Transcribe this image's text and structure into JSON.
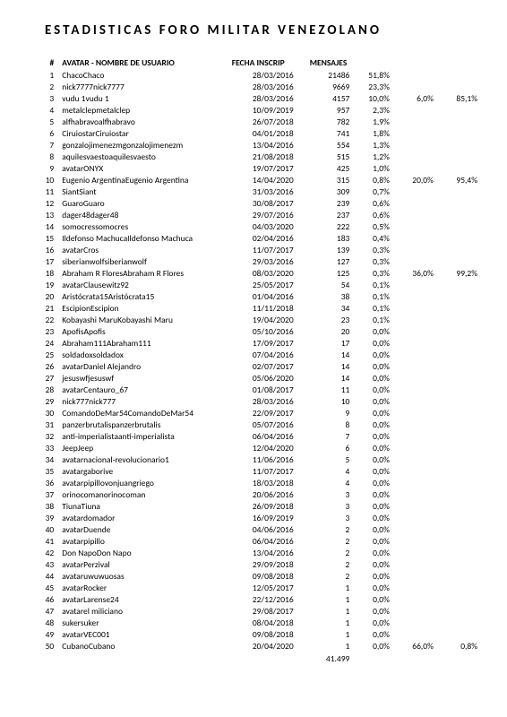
{
  "title": "ESTADISTICAS FORO MILITAR VENEZOLANO",
  "headers": {
    "num": "#",
    "name": "AVATAR - NOMBRE DE USUARIO",
    "date": "FECHA INSCRIP",
    "msgs": "MENSAJES"
  },
  "rows": [
    {
      "n": "1",
      "name": "ChacoChaco",
      "date": "28/03/2016",
      "msgs": "21486",
      "p1": "51,8%",
      "p2": "",
      "p3": ""
    },
    {
      "n": "2",
      "name": "nick7777nick7777",
      "date": "28/03/2016",
      "msgs": "9669",
      "p1": "23,3%",
      "p2": "",
      "p3": ""
    },
    {
      "n": "3",
      "name": "vudu 1vudu 1",
      "date": "28/03/2016",
      "msgs": "4157",
      "p1": "10,0%",
      "p2": "6,0%",
      "p3": "85,1%"
    },
    {
      "n": "4",
      "name": "metalclepmetalclep",
      "date": "10/09/2019",
      "msgs": "957",
      "p1": "2,3%",
      "p2": "",
      "p3": ""
    },
    {
      "n": "5",
      "name": "alfhabravoalfhabravo",
      "date": "26/07/2018",
      "msgs": "782",
      "p1": "1,9%",
      "p2": "",
      "p3": ""
    },
    {
      "n": "6",
      "name": "CiruiostarCiruiostar",
      "date": "04/01/2018",
      "msgs": "741",
      "p1": "1,8%",
      "p2": "",
      "p3": ""
    },
    {
      "n": "7",
      "name": "gonzalojimenezmgonzalojimenezm",
      "date": "13/04/2016",
      "msgs": "554",
      "p1": "1,3%",
      "p2": "",
      "p3": ""
    },
    {
      "n": "8",
      "name": "aquilesvaestoaquilesvaesto",
      "date": "21/08/2018",
      "msgs": "515",
      "p1": "1,2%",
      "p2": "",
      "p3": ""
    },
    {
      "n": "9",
      "name": "avatarONYX",
      "date": "19/07/2017",
      "msgs": "425",
      "p1": "1,0%",
      "p2": "",
      "p3": ""
    },
    {
      "n": "10",
      "name": "Eugenio ArgentinaEugenio Argentina",
      "date": "14/04/2020",
      "msgs": "315",
      "p1": "0,8%",
      "p2": "20,0%",
      "p3": "95,4%"
    },
    {
      "n": "11",
      "name": "SiantSiant",
      "date": "31/03/2016",
      "msgs": "309",
      "p1": "0,7%",
      "p2": "",
      "p3": ""
    },
    {
      "n": "12",
      "name": "GuaroGuaro",
      "date": "30/08/2017",
      "msgs": "239",
      "p1": "0,6%",
      "p2": "",
      "p3": ""
    },
    {
      "n": "13",
      "name": "dager48dager48",
      "date": "29/07/2016",
      "msgs": "237",
      "p1": "0,6%",
      "p2": "",
      "p3": ""
    },
    {
      "n": "14",
      "name": "somocressomocres",
      "date": "04/03/2020",
      "msgs": "222",
      "p1": "0,5%",
      "p2": "",
      "p3": ""
    },
    {
      "n": "15",
      "name": "Ildefonso MachucaIldefonso Machuca",
      "date": "02/04/2016",
      "msgs": "183",
      "p1": "0,4%",
      "p2": "",
      "p3": ""
    },
    {
      "n": "16",
      "name": "avatarCros",
      "date": "11/07/2017",
      "msgs": "139",
      "p1": "0,3%",
      "p2": "",
      "p3": ""
    },
    {
      "n": "17",
      "name": "siberianwolfsiberianwolf",
      "date": "29/03/2016",
      "msgs": "127",
      "p1": "0,3%",
      "p2": "",
      "p3": ""
    },
    {
      "n": "18",
      "name": "Abraham R FloresAbraham R Flores",
      "date": "08/03/2020",
      "msgs": "125",
      "p1": "0,3%",
      "p2": "36,0%",
      "p3": "99,2%"
    },
    {
      "n": "19",
      "name": "avatarClausewitz92",
      "date": "25/05/2017",
      "msgs": "54",
      "p1": "0,1%",
      "p2": "",
      "p3": ""
    },
    {
      "n": "20",
      "name": "Aristócrata15Aristócrata15",
      "date": "01/04/2016",
      "msgs": "38",
      "p1": "0,1%",
      "p2": "",
      "p3": ""
    },
    {
      "n": "21",
      "name": "EscipionEscipion",
      "date": "11/11/2018",
      "msgs": "34",
      "p1": "0,1%",
      "p2": "",
      "p3": ""
    },
    {
      "n": "22",
      "name": "Kobayashi MaruKobayashi Maru",
      "date": "19/04/2020",
      "msgs": "23",
      "p1": "0,1%",
      "p2": "",
      "p3": ""
    },
    {
      "n": "23",
      "name": "ApofisApofis",
      "date": "05/10/2016",
      "msgs": "20",
      "p1": "0,0%",
      "p2": "",
      "p3": ""
    },
    {
      "n": "24",
      "name": "Abraham111Abraham111",
      "date": "17/09/2017",
      "msgs": "17",
      "p1": "0,0%",
      "p2": "",
      "p3": ""
    },
    {
      "n": "25",
      "name": "soldadoxsoldadox",
      "date": "07/04/2016",
      "msgs": "14",
      "p1": "0,0%",
      "p2": "",
      "p3": ""
    },
    {
      "n": "26",
      "name": "avatarDaniel Alejandro",
      "date": "02/07/2017",
      "msgs": "14",
      "p1": "0,0%",
      "p2": "",
      "p3": ""
    },
    {
      "n": "27",
      "name": "jesuswfjesuswf",
      "date": "05/06/2020",
      "msgs": "14",
      "p1": "0,0%",
      "p2": "",
      "p3": ""
    },
    {
      "n": "28",
      "name": "avatarCentauro_67",
      "date": "01/08/2017",
      "msgs": "11",
      "p1": "0,0%",
      "p2": "",
      "p3": ""
    },
    {
      "n": "29",
      "name": "nick777nick777",
      "date": "28/03/2016",
      "msgs": "10",
      "p1": "0,0%",
      "p2": "",
      "p3": ""
    },
    {
      "n": "30",
      "name": "ComandoDeMar54ComandoDeMar54",
      "date": "22/09/2017",
      "msgs": "9",
      "p1": "0,0%",
      "p2": "",
      "p3": ""
    },
    {
      "n": "31",
      "name": "panzerbrutalispanzerbrutalis",
      "date": "05/07/2016",
      "msgs": "8",
      "p1": "0,0%",
      "p2": "",
      "p3": ""
    },
    {
      "n": "32",
      "name": "anti-imperialistaanti-imperialista",
      "date": "06/04/2016",
      "msgs": "7",
      "p1": "0,0%",
      "p2": "",
      "p3": ""
    },
    {
      "n": "33",
      "name": "JeepJeep",
      "date": "12/04/2020",
      "msgs": "6",
      "p1": "0,0%",
      "p2": "",
      "p3": ""
    },
    {
      "n": "34",
      "name": "avatarnacional-revolucionario1",
      "date": "11/06/2016",
      "msgs": "5",
      "p1": "0,0%",
      "p2": "",
      "p3": ""
    },
    {
      "n": "35",
      "name": "avatargaborive",
      "date": "11/07/2017",
      "msgs": "4",
      "p1": "0,0%",
      "p2": "",
      "p3": ""
    },
    {
      "n": "36",
      "name": "avatarpipillovonjuangriego",
      "date": "18/03/2018",
      "msgs": "4",
      "p1": "0,0%",
      "p2": "",
      "p3": ""
    },
    {
      "n": "37",
      "name": "orinocomanorinocoman",
      "date": "20/06/2016",
      "msgs": "3",
      "p1": "0,0%",
      "p2": "",
      "p3": ""
    },
    {
      "n": "38",
      "name": "TiunaTiuna",
      "date": "26/09/2018",
      "msgs": "3",
      "p1": "0,0%",
      "p2": "",
      "p3": ""
    },
    {
      "n": "39",
      "name": "avatardomador",
      "date": "16/09/2019",
      "msgs": "3",
      "p1": "0,0%",
      "p2": "",
      "p3": ""
    },
    {
      "n": "40",
      "name": "avatarDuende",
      "date": "04/06/2016",
      "msgs": "2",
      "p1": "0,0%",
      "p2": "",
      "p3": ""
    },
    {
      "n": "41",
      "name": "avatarpipillo",
      "date": "06/04/2016",
      "msgs": "2",
      "p1": "0,0%",
      "p2": "",
      "p3": ""
    },
    {
      "n": "42",
      "name": "Don NapoDon Napo",
      "date": "13/04/2016",
      "msgs": "2",
      "p1": "0,0%",
      "p2": "",
      "p3": ""
    },
    {
      "n": "43",
      "name": "avatarPerzival",
      "date": "29/09/2018",
      "msgs": "2",
      "p1": "0,0%",
      "p2": "",
      "p3": ""
    },
    {
      "n": "44",
      "name": "avataruwuwuosas",
      "date": "09/08/2018",
      "msgs": "2",
      "p1": "0,0%",
      "p2": "",
      "p3": ""
    },
    {
      "n": "45",
      "name": "avatarRocker",
      "date": "12/05/2017",
      "msgs": "1",
      "p1": "0,0%",
      "p2": "",
      "p3": ""
    },
    {
      "n": "46",
      "name": "avatarLarense24",
      "date": "22/12/2016",
      "msgs": "1",
      "p1": "0,0%",
      "p2": "",
      "p3": ""
    },
    {
      "n": "47",
      "name": "avatarel miliciano",
      "date": "29/08/2017",
      "msgs": "1",
      "p1": "0,0%",
      "p2": "",
      "p3": ""
    },
    {
      "n": "48",
      "name": "sukersuker",
      "date": "08/04/2018",
      "msgs": "1",
      "p1": "0,0%",
      "p2": "",
      "p3": ""
    },
    {
      "n": "49",
      "name": "avatarVEC001",
      "date": "09/08/2018",
      "msgs": "1",
      "p1": "0,0%",
      "p2": "",
      "p3": ""
    },
    {
      "n": "50",
      "name": "CubanoCubano",
      "date": "20/04/2020",
      "msgs": "1",
      "p1": "0,0%",
      "p2": "66,0%",
      "p3": "0,8%"
    }
  ],
  "total": "41.499"
}
